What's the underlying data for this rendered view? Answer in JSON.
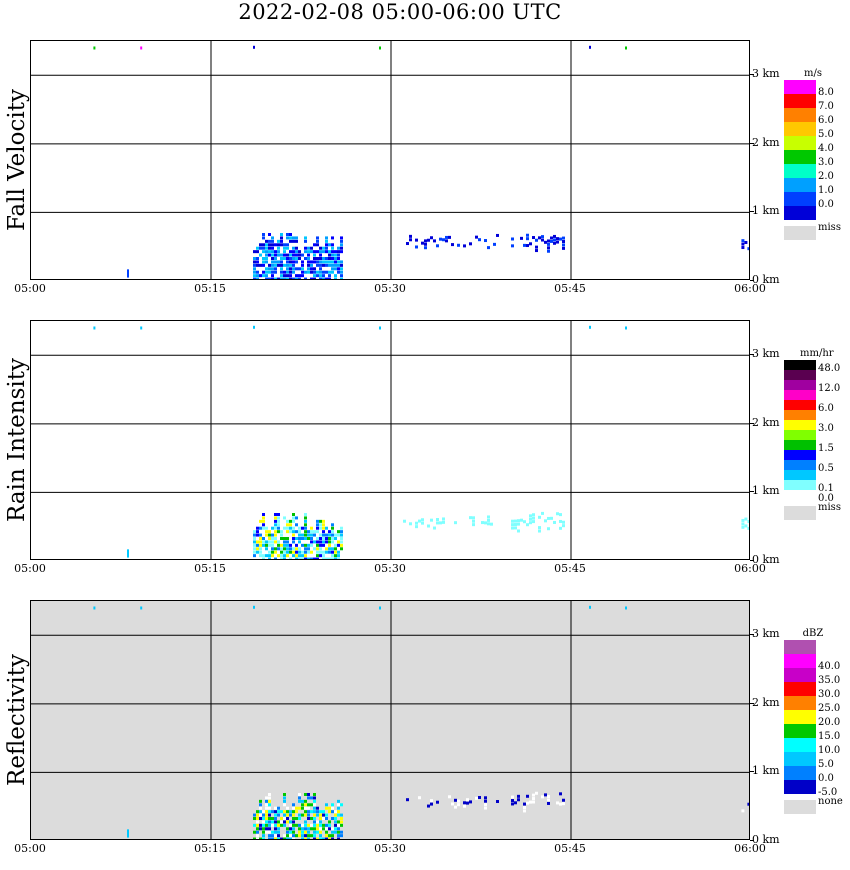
{
  "title": "2022-02-08   05:00-06:00 UTC",
  "x_ticks": [
    "05:00",
    "05:15",
    "05:30",
    "05:45",
    "06:00"
  ],
  "height_ticks": [
    "3 km",
    "2 km",
    "1 km",
    "0 km"
  ],
  "panels": [
    {
      "label": "Fall Velocity",
      "unit": "m/s",
      "background": "#ffffff",
      "missing_label": "miss",
      "colorbar": {
        "colors": [
          "#ff00ff",
          "#ff0000",
          "#ff8000",
          "#ffc800",
          "#c8ff00",
          "#00c800",
          "#00ffc8",
          "#00a0ff",
          "#0040ff",
          "#0000d8"
        ],
        "labels": [
          "8.0",
          "7.0",
          "6.0",
          "5.0",
          "4.0",
          "3.0",
          "2.0",
          "1.0",
          "0.0",
          ""
        ]
      }
    },
    {
      "label": "Rain Intensity",
      "unit": "mm/hr",
      "background": "#ffffff",
      "missing_label": "miss",
      "colorbar": {
        "colors": [
          "#000000",
          "#5a0050",
          "#a000a0",
          "#ff00c8",
          "#ff0000",
          "#ff8000",
          "#ffff00",
          "#80ff00",
          "#00c000",
          "#0000ff",
          "#0080ff",
          "#00c8ff",
          "#80ffff",
          "#ffffff"
        ],
        "labels": [
          "48.0",
          "",
          "12.0",
          "",
          "6.0",
          "",
          "3.0",
          "",
          "1.5",
          "",
          "0.5",
          "",
          "0.1",
          "0.0"
        ]
      }
    },
    {
      "label": "Reflectivity",
      "unit": "dBZ",
      "background": "#dcdcdc",
      "missing_label": "none",
      "colorbar": {
        "colors": [
          "#b050b0",
          "#ff00ff",
          "#c800c8",
          "#ff0000",
          "#ff8000",
          "#ffff00",
          "#00c800",
          "#00ffff",
          "#00c8ff",
          "#0080ff",
          "#0000c8"
        ],
        "labels": [
          "",
          "40.0",
          "35.0",
          "30.0",
          "25.0",
          "20.0",
          "15.0",
          "10.0",
          "5.0",
          "0.0",
          "-5.0"
        ]
      }
    }
  ],
  "chart_data": {
    "type": "heatmap",
    "x_range": [
      "05:00",
      "06:00"
    ],
    "y_range_km": [
      0,
      3.5
    ],
    "grid": true,
    "precip_blocks": [
      {
        "t0": 18.5,
        "t1": 26.0,
        "h0": 0.0,
        "h1": 0.7,
        "kind": "core"
      },
      {
        "t0": 31.0,
        "t1": 39.0,
        "h0": 0.45,
        "h1": 0.65,
        "kind": "light"
      },
      {
        "t0": 40.0,
        "t1": 44.5,
        "h0": 0.4,
        "h1": 0.7,
        "kind": "light"
      },
      {
        "t0": 59.2,
        "t1": 60.0,
        "h0": 0.35,
        "h1": 0.65,
        "kind": "light"
      }
    ]
  }
}
